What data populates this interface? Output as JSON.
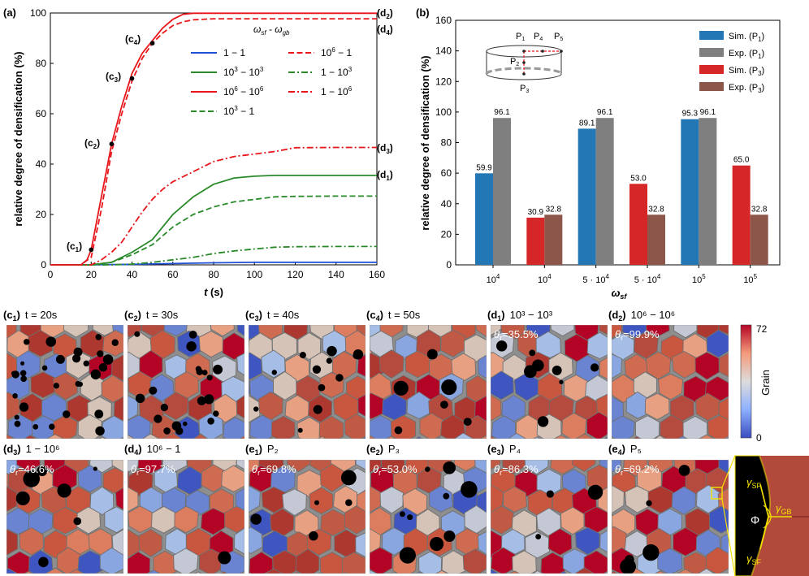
{
  "panel_a": {
    "label": "(a)",
    "legend_title": "ω_sf - ω_gb",
    "legend_title_main": "ω",
    "legend_title_sub1": "sf",
    "legend_title_mid": " - ω",
    "legend_title_sub2": "gb",
    "left_annotations": [
      {
        "id": "c1",
        "base": "(c",
        "sub": "1",
        "close": ")"
      },
      {
        "id": "c2",
        "base": "(c",
        "sub": "2",
        "close": ")"
      },
      {
        "id": "c3",
        "base": "(c",
        "sub": "3",
        "close": ")"
      },
      {
        "id": "c4",
        "base": "(c",
        "sub": "4",
        "close": ")"
      }
    ],
    "right_annotations": [
      {
        "id": "d2",
        "base": "(d",
        "sub": "2",
        "close": ")"
      },
      {
        "id": "d4",
        "base": "(d",
        "sub": "4",
        "close": ")"
      },
      {
        "id": "d3",
        "base": "(d",
        "sub": "3",
        "close": ")"
      },
      {
        "id": "d1",
        "base": "(d",
        "sub": "1",
        "close": ")"
      }
    ]
  },
  "panel_b": {
    "label": "(b)",
    "inset": {
      "p1": "P",
      "p1s": "1",
      "p4": "P",
      "p4s": "4",
      "p5": "P",
      "p5s": "5",
      "p2": "P",
      "p2s": "2",
      "p3": "P",
      "p3s": "3"
    },
    "x_ticks": [
      {
        "base": "10",
        "exp": "4"
      },
      {
        "base": "10",
        "exp": "4"
      },
      {
        "base": "5 · 10",
        "exp": "4"
      },
      {
        "base": "5 · 10",
        "exp": "4"
      },
      {
        "base": "10",
        "exp": "5"
      },
      {
        "base": "10",
        "exp": "5"
      }
    ],
    "xlabel_main": "ω",
    "xlabel_sub": "sf"
  },
  "grain_panels": {
    "row1": [
      {
        "id": "c1",
        "base": "(c",
        "sub": "1",
        "close": ")",
        "caption": "t = 20s"
      },
      {
        "id": "c2",
        "base": "(c",
        "sub": "2",
        "close": ")",
        "caption": "t = 30s"
      },
      {
        "id": "c3",
        "base": "(c",
        "sub": "3",
        "close": ")",
        "caption": "t = 40s"
      },
      {
        "id": "c4",
        "base": "(c",
        "sub": "4",
        "close": ")",
        "caption": "t = 50s"
      },
      {
        "id": "d1",
        "base": "(d",
        "sub": "1",
        "close": ")",
        "caption": "10³ − 10³",
        "theta": "θr=35.5%"
      },
      {
        "id": "d2",
        "base": "(d",
        "sub": "2",
        "close": ")",
        "caption": "10⁶ − 10⁶",
        "theta": "θr=99.9%"
      }
    ],
    "row2": [
      {
        "id": "d3",
        "base": "(d",
        "sub": "3",
        "close": ")",
        "caption": "1 − 10⁶",
        "theta": "θr=46.6%"
      },
      {
        "id": "d4",
        "base": "(d",
        "sub": "4",
        "close": ")",
        "caption": "10⁶ − 1",
        "theta": "θr=97.7%"
      },
      {
        "id": "e1",
        "base": "(e",
        "sub": "1",
        "close": ")",
        "caption": "P₂",
        "theta": "θr=69.8%"
      },
      {
        "id": "e2",
        "base": "(e",
        "sub": "2",
        "close": ")",
        "caption": "P₃",
        "theta": "θr=53.0%"
      },
      {
        "id": "e3",
        "base": "(e",
        "sub": "3",
        "close": ")",
        "caption": "P₄",
        "theta": "θr=86.3%"
      },
      {
        "id": "e4",
        "base": "(e",
        "sub": "4",
        "close": ")",
        "caption": "P₅",
        "theta": "θr=69.2%"
      }
    ],
    "colorbar": {
      "max": "72",
      "min": "0",
      "label": "Grain"
    },
    "zoom": {
      "gamma": "γ",
      "sf_top": "SF",
      "gb": "GB",
      "sf_bottom": "SF",
      "phi": "Φ"
    }
  },
  "colors": {
    "blue": "#1f4fd6",
    "green": "#2a8a2a",
    "red": "#e8161b",
    "bar_sim_p1": "#2377b4",
    "bar_exp_p1": "#7f7f7f",
    "bar_sim_p3": "#d62728",
    "bar_exp_p3": "#8c564b",
    "zoom_yellow": "#f3e100"
  },
  "chart_data": [
    {
      "type": "line",
      "title": "",
      "xlabel": "t (s)",
      "ylabel": "relative degree of densification (%)",
      "xlim": [
        0,
        160
      ],
      "ylim": [
        0,
        100
      ],
      "xticks": [
        0,
        20,
        40,
        60,
        80,
        100,
        120,
        140,
        160
      ],
      "yticks": [
        0,
        20,
        40,
        60,
        80,
        100
      ],
      "legend_title": "ω_sf - ω_gb",
      "series": [
        {
          "name": "1 − 1",
          "color": "#1f4fd6",
          "style": "solid",
          "x": [
            0,
            15,
            40,
            60,
            80,
            100,
            160
          ],
          "y": [
            0,
            0,
            0.2,
            0.5,
            0.8,
            1.0,
            1.0
          ]
        },
        {
          "name": "10³ − 10³",
          "color": "#2a8a2a",
          "style": "solid",
          "x": [
            0,
            20,
            30,
            40,
            50,
            60,
            70,
            80,
            90,
            100,
            110,
            120,
            140,
            160
          ],
          "y": [
            0,
            0,
            1,
            5,
            10,
            20,
            27,
            32,
            34.5,
            35.2,
            35.5,
            35.5,
            35.5,
            35.5
          ]
        },
        {
          "name": "10⁶ − 10⁶",
          "color": "#e8161b",
          "style": "solid",
          "x": [
            0,
            15,
            18,
            20,
            25,
            30,
            35,
            40,
            45,
            50,
            55,
            60,
            65,
            70,
            80,
            100,
            160
          ],
          "y": [
            0,
            0,
            2,
            6,
            27,
            48,
            63,
            76,
            84,
            89,
            94,
            97.5,
            99.5,
            99.9,
            99.9,
            99.9,
            99.9
          ]
        },
        {
          "name": "10³ − 1",
          "color": "#2a8a2a",
          "style": "dashed",
          "x": [
            0,
            20,
            30,
            40,
            50,
            60,
            70,
            80,
            90,
            100,
            110,
            120,
            140,
            160
          ],
          "y": [
            0,
            0,
            1,
            4,
            8,
            15,
            20,
            23,
            25,
            26,
            27,
            27.2,
            27.3,
            27.3
          ]
        },
        {
          "name": "10⁶ − 1",
          "color": "#e8161b",
          "style": "dashed",
          "x": [
            0,
            15,
            20,
            25,
            30,
            35,
            40,
            45,
            50,
            55,
            60,
            65,
            70,
            80,
            100,
            160
          ],
          "y": [
            0,
            0,
            3,
            22,
            45,
            60,
            73,
            82,
            88,
            92,
            95,
            96.5,
            97.3,
            97.7,
            97.7,
            97.7
          ]
        },
        {
          "name": "1 − 10³",
          "color": "#2a8a2a",
          "style": "dashdot",
          "x": [
            0,
            30,
            40,
            50,
            60,
            70,
            80,
            90,
            100,
            110,
            120,
            140,
            160
          ],
          "y": [
            0,
            0,
            0.3,
            1,
            2,
            3,
            4.5,
            5.5,
            6.3,
            7,
            7.2,
            7.3,
            7.3
          ]
        },
        {
          "name": "1 − 10⁶",
          "color": "#e8161b",
          "style": "dashdot",
          "x": [
            0,
            20,
            25,
            30,
            35,
            40,
            45,
            50,
            55,
            60,
            70,
            80,
            90,
            100,
            110,
            120,
            140,
            160
          ],
          "y": [
            0,
            0,
            2,
            5,
            9,
            15,
            21,
            26,
            30,
            33,
            37,
            41,
            43,
            44,
            45,
            46.5,
            46.6,
            46.6
          ]
        }
      ],
      "markers": [
        {
          "label": "c1",
          "x": 20,
          "y": 6
        },
        {
          "label": "c2",
          "x": 30,
          "y": 48
        },
        {
          "label": "c3",
          "x": 40,
          "y": 74
        },
        {
          "label": "c4",
          "x": 50,
          "y": 88
        }
      ],
      "end_labels": [
        {
          "label": "d2",
          "y": 99.9
        },
        {
          "label": "d4",
          "y": 97.7
        },
        {
          "label": "d3",
          "y": 46.6
        },
        {
          "label": "d1",
          "y": 35.5
        }
      ]
    },
    {
      "type": "bar",
      "title": "",
      "xlabel": "ω_sf",
      "ylabel": "relative degree of densification (%)",
      "ylim": [
        0,
        160
      ],
      "yticks": [
        0,
        20,
        40,
        60,
        80,
        100,
        120,
        140,
        160
      ],
      "categories": [
        "10⁴",
        "10⁴",
        "5 · 10⁴",
        "5 · 10⁴",
        "10⁵",
        "10⁵"
      ],
      "groups": [
        {
          "bars": [
            {
              "series": "Sim. (P1)",
              "value": 59.9,
              "color": "#2377b4"
            },
            {
              "series": "Exp. (P1)",
              "value": 96.1,
              "color": "#7f7f7f"
            }
          ]
        },
        {
          "bars": [
            {
              "series": "Sim. (P3)",
              "value": 30.9,
              "color": "#d62728"
            },
            {
              "series": "Exp. (P3)",
              "value": 32.8,
              "color": "#8c564b"
            }
          ]
        },
        {
          "bars": [
            {
              "series": "Sim. (P1)",
              "value": 89.1,
              "color": "#2377b4"
            },
            {
              "series": "Exp. (P1)",
              "value": 96.1,
              "color": "#7f7f7f"
            }
          ]
        },
        {
          "bars": [
            {
              "series": "Sim. (P3)",
              "value": 53.0,
              "color": "#d62728"
            },
            {
              "series": "Exp. (P3)",
              "value": 32.8,
              "color": "#8c564b"
            }
          ]
        },
        {
          "bars": [
            {
              "series": "Sim. (P1)",
              "value": 95.3,
              "color": "#2377b4"
            },
            {
              "series": "Exp. (P1)",
              "value": 96.1,
              "color": "#7f7f7f"
            }
          ]
        },
        {
          "bars": [
            {
              "series": "Sim. (P3)",
              "value": 65.0,
              "color": "#d62728"
            },
            {
              "series": "Exp. (P3)",
              "value": 32.8,
              "color": "#8c564b"
            }
          ]
        }
      ],
      "legend": [
        {
          "name": "Sim. (P1)",
          "base": "Sim. (P",
          "sub": "1",
          "close": ")",
          "color": "#2377b4"
        },
        {
          "name": "Exp. (P1)",
          "base": "Exp. (P",
          "sub": "1",
          "close": ")",
          "color": "#7f7f7f"
        },
        {
          "name": "Sim. (P3)",
          "base": "Sim. (P",
          "sub": "3",
          "close": ")",
          "color": "#d62728"
        },
        {
          "name": "Exp. (P3)",
          "base": "Exp. (P",
          "sub": "3",
          "close": ")",
          "color": "#8c564b"
        }
      ]
    }
  ]
}
